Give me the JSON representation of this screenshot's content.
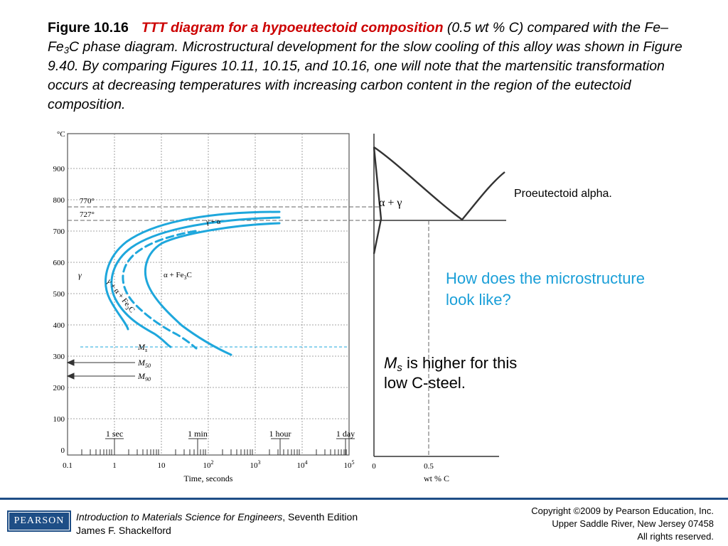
{
  "caption": {
    "figure_label": "Figure 10.16",
    "title": "TTT diagram for a hypoeutectoid composition",
    "text_a": "(0.5 wt % C) compared with the Fe–Fe",
    "sub_3": "3",
    "text_b": "C phase diagram. Microstructural development for the slow cooling of this alloy was shown in Figure 9.40. By comparing Figures 10.11, 10.15, and 10.16, one will note that the martensitic transformation occurs at decreasing temperatures with increasing carbon content in the region of the eutectoid composition."
  },
  "ttt": {
    "y_unit": "°C",
    "y_ticks": [
      "900",
      "800",
      "700",
      "600",
      "500",
      "400",
      "300",
      "200",
      "100",
      "0"
    ],
    "x_ticks": [
      {
        "base": "0.1",
        "exp": ""
      },
      {
        "base": "1",
        "exp": ""
      },
      {
        "base": "10",
        "exp": ""
      },
      {
        "base": "10",
        "exp": "2"
      },
      {
        "base": "10",
        "exp": "3"
      },
      {
        "base": "10",
        "exp": "4"
      },
      {
        "base": "10",
        "exp": "5"
      }
    ],
    "xlabel": "Time, seconds",
    "time_marks": [
      "1 sec",
      "1 min",
      "1 hour",
      "1 day"
    ],
    "temp_770": "770°",
    "temp_727": "727°",
    "label_gamma": "γ",
    "label_gamma_alpha": "γ + α",
    "label_alpha_fe3c": "α + Fe",
    "label_alpha_fe3c_sub": "3",
    "label_alpha_fe3c_end": "C",
    "label_diag": "γ + α + Fe",
    "label_diag_sub": "3",
    "label_diag_end": "C",
    "ms_label": "M",
    "ms_sub": "s",
    "m50_label": "M",
    "m50_sub": "50",
    "m90_label": "M",
    "m90_sub": "90",
    "curve_color": "#1ea7dc"
  },
  "phase": {
    "region_label": "α + γ",
    "x_tick_0": "0",
    "x_tick_05": "0.5",
    "xlabel": "wt % C"
  },
  "notes": {
    "proeutectoid": "Proeutectoid alpha.",
    "question": "How does the microstructure look like?",
    "ms_symbol": "M",
    "ms_sub": "s",
    "ms_text": "is higher for this low C-steel."
  },
  "footer": {
    "logo": "PEARSON",
    "book_title": "Introduction to Materials Science for Engineers",
    "book_edition": ", Seventh Edition",
    "author": "James F. Shackelford",
    "copyright": "Copyright ©2009 by Pearson Education, Inc.",
    "address": "Upper Saddle River, New Jersey 07458",
    "rights": "All rights reserved."
  }
}
